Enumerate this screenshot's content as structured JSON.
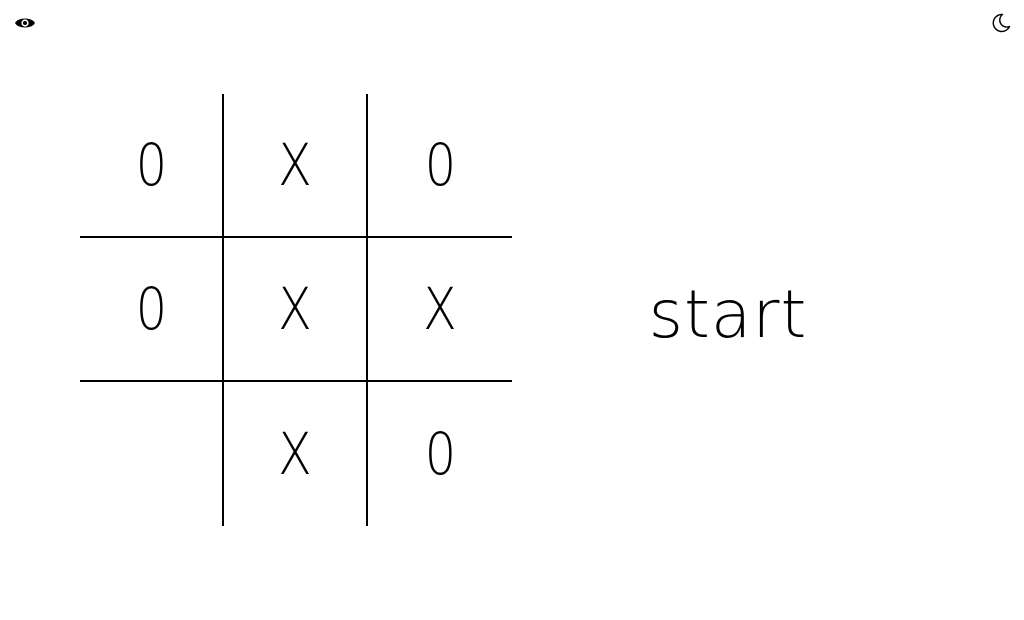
{
  "header": {
    "visibility_icon": "eye-icon",
    "theme_icon": "moon-icon"
  },
  "board": {
    "cells": [
      "0",
      "X",
      "0",
      "0",
      "X",
      "X",
      "",
      "X",
      "0"
    ]
  },
  "start_label": "start",
  "colors": {
    "background": "#ffffff",
    "foreground": "#000000"
  }
}
